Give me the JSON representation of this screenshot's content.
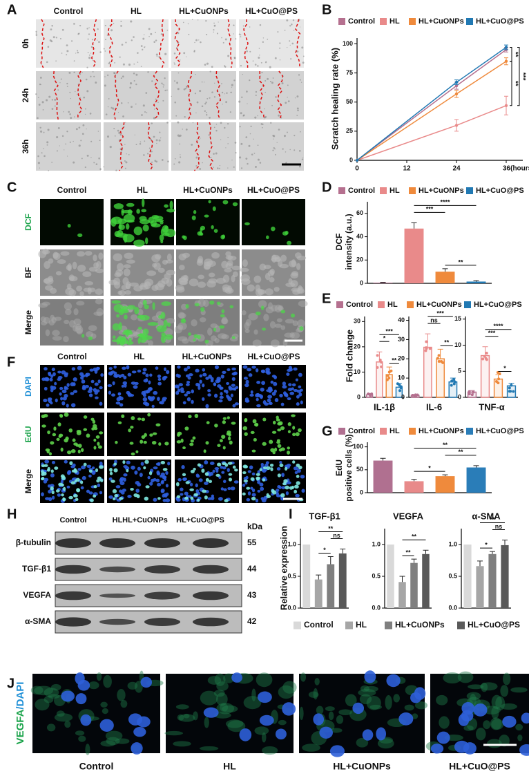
{
  "panel_labels": [
    "A",
    "B",
    "C",
    "D",
    "E",
    "F",
    "G",
    "H",
    "I",
    "J"
  ],
  "groups": [
    "Control",
    "HL",
    "HL+CuONPs",
    "HL+CuO@PS"
  ],
  "scratch": {
    "rows": [
      "0h",
      "24h",
      "36h"
    ]
  },
  "ros": {
    "rows": [
      "DCF",
      "BF",
      "Merge"
    ]
  },
  "edu": {
    "rows": [
      "DAPI",
      "EdU",
      "Merge"
    ]
  },
  "blot": {
    "rows": [
      "β-tubulin",
      "TGF-β1",
      "VEGFA",
      "α-SMA"
    ],
    "unit": "kDa",
    "kda": [
      55,
      44,
      43,
      42
    ]
  },
  "immuno": {
    "stain": [
      "VEGFA",
      "/DAPI"
    ]
  },
  "chart_data": [
    {
      "type": "line",
      "ylabel": "Scratch healing rate (%)",
      "x": [
        0,
        24,
        36
      ],
      "xlim": [
        0,
        40
      ],
      "xticks": [
        0,
        12,
        24,
        {
          "value": 36,
          "label": "36(hours)"
        }
      ],
      "ylim": [
        0,
        105
      ],
      "yticks": [
        0,
        25,
        50,
        75,
        100
      ],
      "series": [
        {
          "name": "Control",
          "color": "#b5708f",
          "values": [
            0,
            64,
            95
          ],
          "errors": [
            0,
            3,
            2
          ]
        },
        {
          "name": "HL",
          "color": "#e98a8a",
          "values": [
            0,
            30,
            47
          ],
          "errors": [
            0,
            5,
            8
          ]
        },
        {
          "name": "HL+CuONPs",
          "color": "#ef8a3c",
          "values": [
            0,
            57,
            85
          ],
          "errors": [
            0,
            3,
            3
          ]
        },
        {
          "name": "HL+CuO@PS",
          "color": "#2179b3",
          "values": [
            0,
            67,
            97
          ],
          "errors": [
            0,
            2,
            2
          ]
        }
      ],
      "annotations": [
        "**",
        "**",
        "***"
      ]
    },
    {
      "type": "bar",
      "ylabel": [
        "DCF",
        "intensity (a.u.)"
      ],
      "categories": [
        "Control",
        "HL",
        "HL+CuONPs",
        "HL+CuO@PS"
      ],
      "colors": [
        "#b5708f",
        "#e98a8a",
        "#ef8a3c",
        "#2179b3"
      ],
      "values": [
        0.6,
        47,
        10,
        1.5
      ],
      "errors": [
        0.3,
        5,
        2.5,
        0.8
      ],
      "ylim": [
        0,
        70
      ],
      "yticks": [
        0,
        20,
        40,
        60
      ],
      "annotations": [
        "****",
        "***",
        "**"
      ]
    },
    {
      "type": "bar",
      "style": "outline",
      "ylabel": "Fold change",
      "title": "IL-1β",
      "categories": [
        "Control",
        "HL",
        "HL+CuONPs",
        "HL+CuO@PS"
      ],
      "colors": [
        "#b5708f",
        "#e98a8a",
        "#ef8a3c",
        "#2179b3"
      ],
      "values": [
        1,
        14,
        9,
        4
      ],
      "errors": [
        0.5,
        4,
        3,
        1.5
      ],
      "ylim": [
        0,
        32
      ],
      "yticks": [
        0,
        10,
        20,
        30
      ],
      "annotations": [
        "***",
        "*",
        "**"
      ]
    },
    {
      "type": "bar",
      "style": "outline",
      "title": "IL-6",
      "colors": [
        "#b5708f",
        "#e98a8a",
        "#ef8a3c",
        "#2179b3"
      ],
      "values": [
        1,
        26,
        20,
        8
      ],
      "errors": [
        0.5,
        7,
        5,
        2
      ],
      "ylim": [
        0,
        42
      ],
      "yticks": [
        0,
        10,
        20,
        30,
        40
      ],
      "annotations": [
        "***",
        "ns",
        "**"
      ]
    },
    {
      "type": "bar",
      "style": "outline",
      "title": "TNF-α",
      "colors": [
        "#b5708f",
        "#e98a8a",
        "#ef8a3c",
        "#2179b3"
      ],
      "values": [
        1,
        8,
        3.5,
        2.2
      ],
      "errors": [
        0.3,
        1.7,
        0.8,
        0.5
      ],
      "ylim": [
        0,
        15.5
      ],
      "yticks": [
        0,
        5,
        10,
        15
      ],
      "annotations": [
        "****",
        "***",
        "*"
      ]
    },
    {
      "type": "bar",
      "ylabel": [
        "EdU",
        "positive cells (%)"
      ],
      "categories": [
        "Control",
        "HL",
        "HL+CuONPs",
        "HL+CuO@PS"
      ],
      "colors": [
        "#b07090",
        "#e88a8a",
        "#ef8a3c",
        "#2a7db8"
      ],
      "values": [
        70,
        25,
        36,
        55
      ],
      "errors": [
        5,
        4,
        3,
        4
      ],
      "ylim": [
        0,
        110
      ],
      "yticks": [
        0,
        50,
        100
      ],
      "annotations": [
        "**",
        "**",
        "*"
      ]
    },
    {
      "type": "bar",
      "ylabel": "Relative expression",
      "title": "TGF-β1",
      "categories": [
        "Control",
        "HL",
        "HL+CuONPs",
        "HL+CuO@PS"
      ],
      "colors": [
        "#d9d9d9",
        "#a6a6a6",
        "#7f7f7f",
        "#595959"
      ],
      "values": [
        1,
        0.45,
        0.69,
        0.86
      ],
      "errors": [
        0,
        0.07,
        0.12,
        0.07
      ],
      "ylim": [
        0,
        1.25
      ],
      "yticks": [
        {
          "value": 0,
          "label": "0.0"
        },
        0.5,
        {
          "value": 1,
          "label": "1.0"
        }
      ],
      "annotations": [
        "**",
        "ns",
        "*"
      ]
    },
    {
      "type": "bar",
      "title": "VEGFA",
      "colors": [
        "#d9d9d9",
        "#a6a6a6",
        "#7f7f7f",
        "#595959"
      ],
      "values": [
        1,
        0.41,
        0.71,
        0.85
      ],
      "errors": [
        0,
        0.09,
        0.06,
        0.06
      ],
      "ylim": [
        0,
        1.25
      ],
      "yticks": [
        {
          "value": 0,
          "label": "0.0"
        },
        0.5,
        {
          "value": 1,
          "label": "1.0"
        }
      ],
      "annotations": [
        "**",
        "**"
      ]
    },
    {
      "type": "bar",
      "title": "α-SMA",
      "colors": [
        "#d9d9d9",
        "#a6a6a6",
        "#7f7f7f",
        "#595959"
      ],
      "values": [
        1,
        0.66,
        0.85,
        0.99
      ],
      "errors": [
        0,
        0.08,
        0.04,
        0.08
      ],
      "ylim": [
        0,
        1.25
      ],
      "yticks": [
        {
          "value": 0,
          "label": "0.0"
        },
        0.5,
        {
          "value": 1,
          "label": "1.0"
        }
      ],
      "annotations": [
        "**",
        "ns",
        "*"
      ]
    }
  ]
}
